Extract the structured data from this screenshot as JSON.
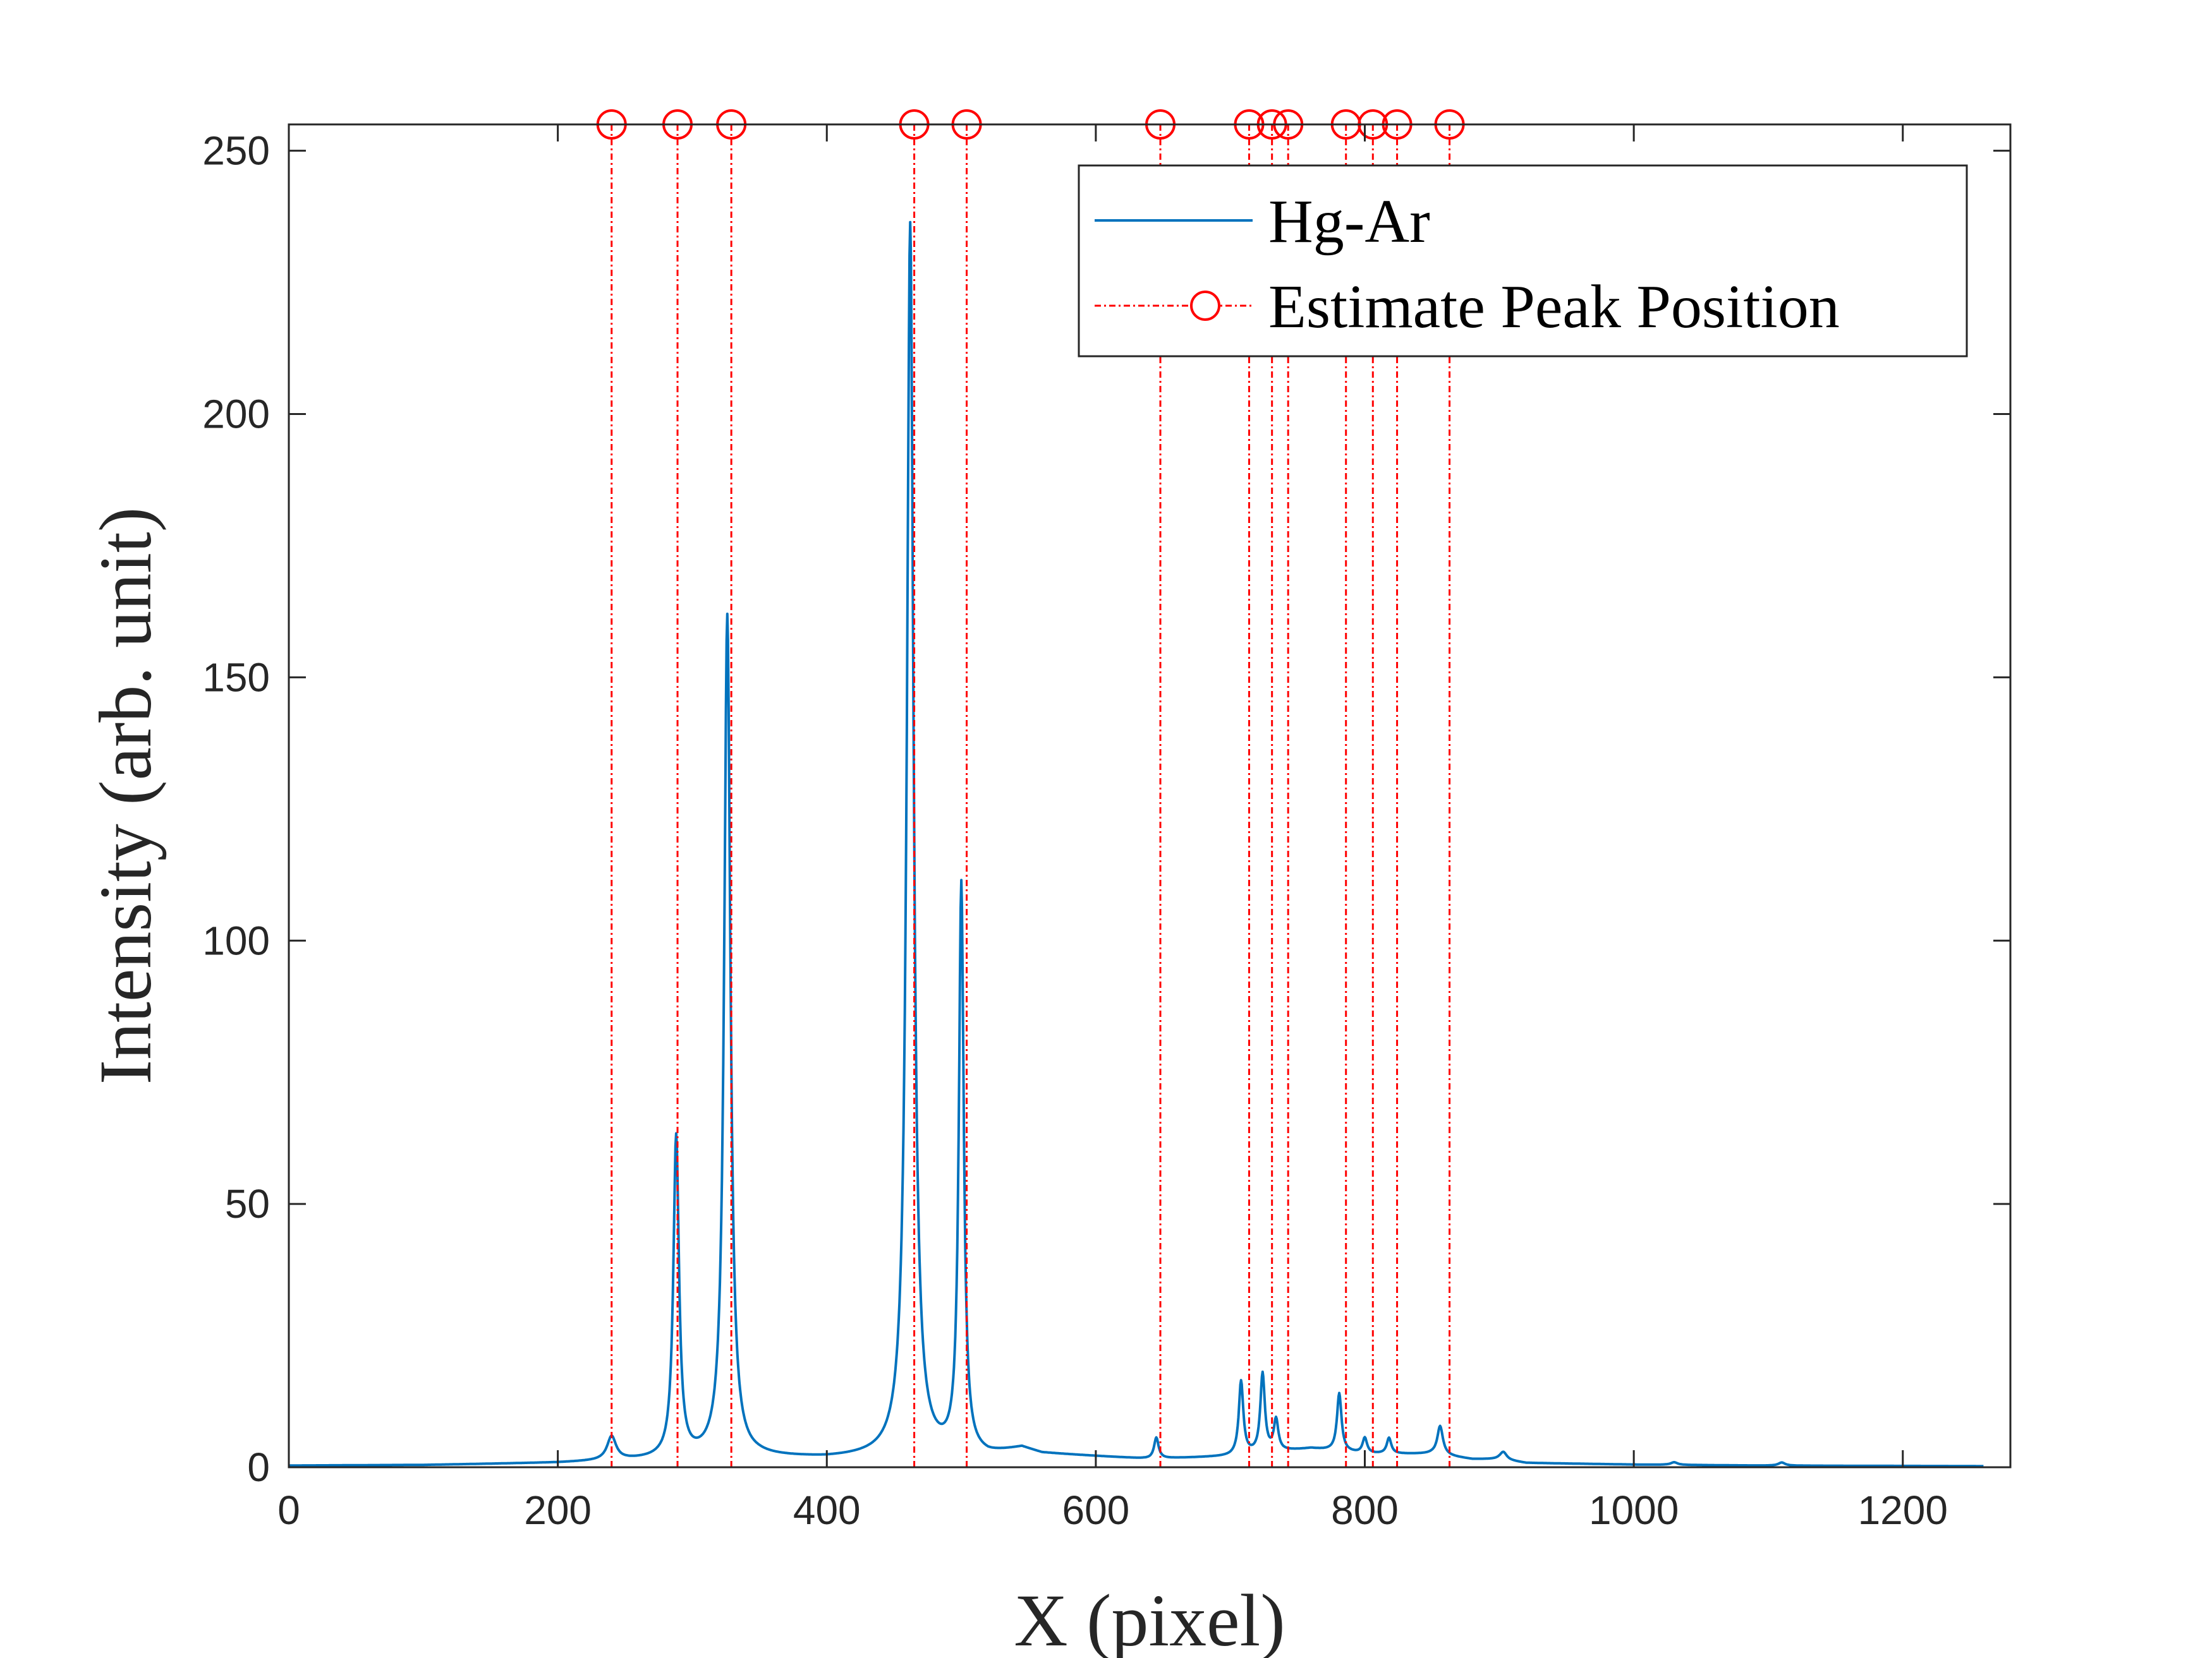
{
  "chart_data": {
    "type": "line",
    "xlabel": "X (pixel)",
    "ylabel": "Intensity (arb. unit)",
    "xlim": [
      0,
      1280
    ],
    "ylim": [
      0,
      255
    ],
    "xticks": [
      0,
      200,
      400,
      600,
      800,
      1000,
      1200
    ],
    "yticks": [
      0,
      50,
      100,
      150,
      200,
      250
    ],
    "grid": false,
    "legend_position": "top-right",
    "colors": {
      "spectrum": "#0072BD",
      "peaks": "#FF0000",
      "axis": "#262626"
    },
    "series": [
      {
        "name": "Hg-Ar",
        "baseline": [
          [
            0,
            0.3
          ],
          [
            100,
            0.4
          ],
          [
            200,
            0.8
          ],
          [
            250,
            1.2
          ],
          [
            350,
            1.8
          ],
          [
            400,
            1.6
          ],
          [
            450,
            2.0
          ],
          [
            520,
            2.0
          ],
          [
            545,
            3.5
          ],
          [
            560,
            2.5
          ],
          [
            600,
            2.0
          ],
          [
            640,
            1.5
          ],
          [
            700,
            2.0
          ],
          [
            760,
            3.5
          ],
          [
            800,
            2.5
          ],
          [
            850,
            2.5
          ],
          [
            880,
            1.5
          ],
          [
            900,
            1.5
          ],
          [
            920,
            0.8
          ],
          [
            1000,
            0.5
          ],
          [
            1100,
            0.3
          ],
          [
            1280,
            0.2
          ]
        ],
        "peaks": [
          {
            "x": 240,
            "height": 4.5,
            "width": 4
          },
          {
            "x": 288,
            "height": 61.0,
            "width": 2.5
          },
          {
            "x": 326,
            "height": 160.0,
            "width": 2.8
          },
          {
            "x": 462,
            "height": 234.0,
            "width": 3.0
          },
          {
            "x": 500,
            "height": 108.0,
            "width": 2.2
          },
          {
            "x": 645,
            "height": 4.0,
            "width": 2.0
          },
          {
            "x": 708,
            "height": 14.0,
            "width": 2.0
          },
          {
            "x": 724,
            "height": 15.0,
            "width": 2.0
          },
          {
            "x": 734,
            "height": 6.0,
            "width": 2.0
          },
          {
            "x": 781,
            "height": 11.0,
            "width": 2.0
          },
          {
            "x": 800,
            "height": 3.0,
            "width": 2.0
          },
          {
            "x": 818,
            "height": 3.0,
            "width": 2.0
          },
          {
            "x": 856,
            "height": 5.5,
            "width": 2.5
          },
          {
            "x": 903,
            "height": 1.5,
            "width": 3.0
          },
          {
            "x": 1030,
            "height": 0.5,
            "width": 3.0
          },
          {
            "x": 1110,
            "height": 0.6,
            "width": 3.0
          }
        ]
      },
      {
        "name": "Estimate Peak Position",
        "marker_y": 255,
        "x": [
          240,
          289,
          329,
          465,
          504,
          648,
          714,
          731,
          743,
          786,
          806,
          824,
          863
        ]
      }
    ]
  }
}
